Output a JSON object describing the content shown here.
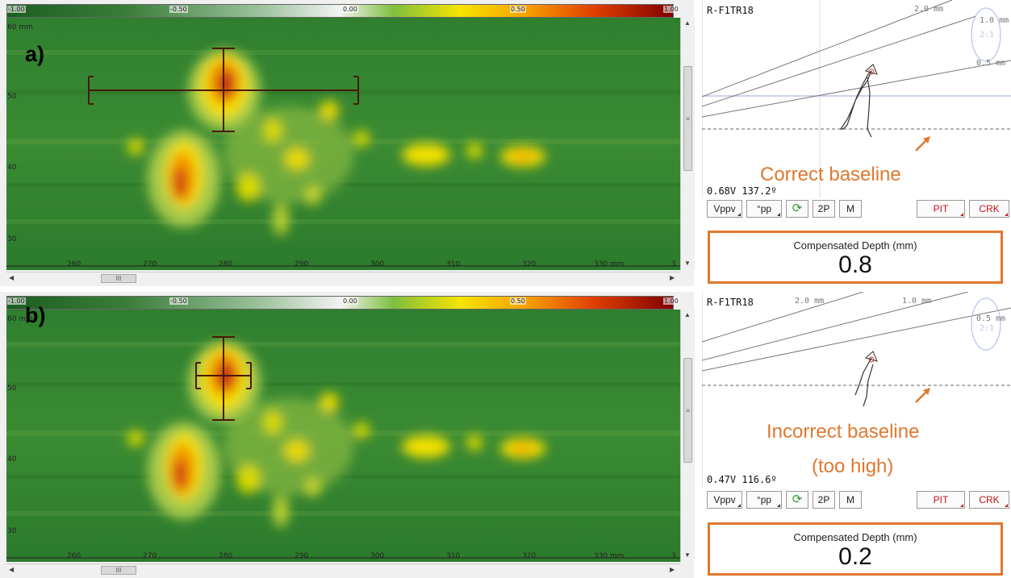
{
  "colorbar": {
    "ticks": [
      "-1.00",
      "-0.50",
      "0.00",
      "0.50",
      "1.00"
    ]
  },
  "cscan": {
    "y_ticks": [
      "60 mm",
      "50",
      "40",
      "30"
    ],
    "x_ticks": [
      "260",
      "270",
      "280",
      "290",
      "300",
      "310",
      "320",
      "330 mm",
      "3"
    ],
    "scroll_thumb": "III",
    "scroll_thumb_v": "≡"
  },
  "panels": [
    {
      "label": "a)",
      "signal_name": "R-F1TR18",
      "curve_labels": [
        "2.0 mm",
        "1.0 mm",
        "2:1",
        "0.5 mm"
      ],
      "reading": "0.68V 137.2º",
      "annotation": "Correct baseline",
      "depth_title": "Compensated Depth (mm)",
      "depth_value": "0.8"
    },
    {
      "label": "b)",
      "signal_name": "R-F1TR18",
      "curve_labels": [
        "2.0 mm",
        "1.0 mm",
        "0.5 mm",
        "2:1"
      ],
      "reading": "0.47V 116.6º",
      "annotation_line1": "Incorrect baseline",
      "annotation_line2": "(too high)",
      "depth_title": "Compensated Depth (mm)",
      "depth_value": "0.2"
    }
  ],
  "toolbar": {
    "vppv": "Vppv",
    "pp": "°pp",
    "twop": "2P",
    "m": "M",
    "pit": "PIT",
    "crk": "CRK"
  },
  "colors": {
    "annotation": "#e0782e",
    "pit": "#c0141c",
    "refresh": "#2e9a2e"
  }
}
